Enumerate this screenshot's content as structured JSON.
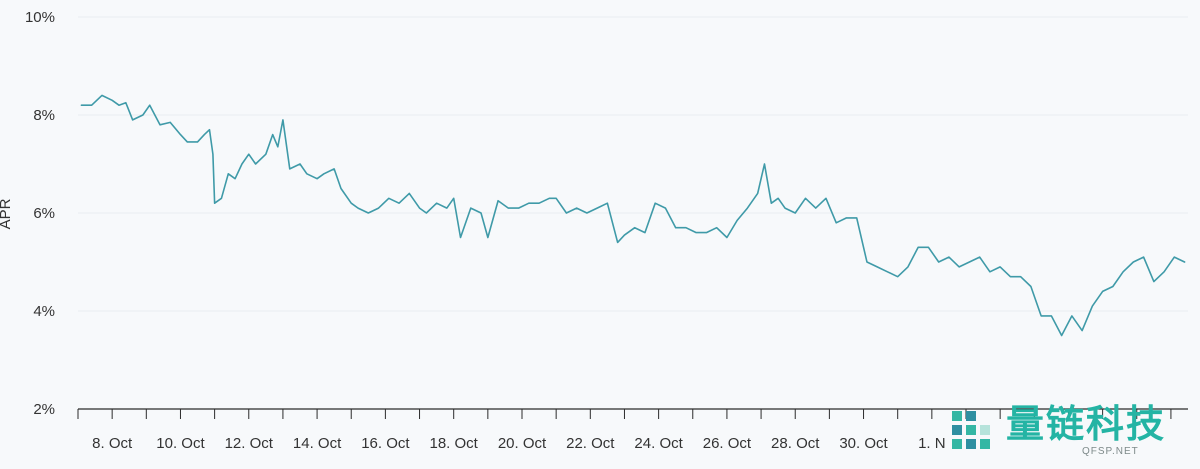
{
  "chart_data": {
    "type": "line",
    "title": "",
    "xlabel": "",
    "ylabel": "APR",
    "ylim": [
      2,
      10
    ],
    "yticks": [
      2,
      4,
      6,
      8,
      10
    ],
    "ytick_labels": [
      "2%",
      "4%",
      "6%",
      "8%",
      "10%"
    ],
    "xlim": [
      7.0,
      39.5
    ],
    "xticks": [
      8,
      10,
      12,
      14,
      16,
      18,
      20,
      22,
      24,
      26,
      28,
      30,
      32
    ],
    "xtick_labels": [
      "8. Oct",
      "10. Oct",
      "12. Oct",
      "14. Oct",
      "16. Oct",
      "18. Oct",
      "20. Oct",
      "22. Oct",
      "24. Oct",
      "26. Oct",
      "28. Oct",
      "30. Oct",
      "1. N"
    ],
    "series": [
      {
        "name": "APR",
        "color": "#3f9aa8",
        "x": [
          7.1,
          7.4,
          7.7,
          8.0,
          8.2,
          8.4,
          8.6,
          8.9,
          9.1,
          9.4,
          9.7,
          10.0,
          10.2,
          10.5,
          10.7,
          10.85,
          10.95,
          11.0,
          11.2,
          11.4,
          11.6,
          11.8,
          12.0,
          12.2,
          12.5,
          12.7,
          12.85,
          13.0,
          13.2,
          13.5,
          13.7,
          14.0,
          14.2,
          14.5,
          14.7,
          15.0,
          15.2,
          15.5,
          15.8,
          16.1,
          16.4,
          16.7,
          17.0,
          17.2,
          17.5,
          17.8,
          18.0,
          18.2,
          18.5,
          18.8,
          19.0,
          19.3,
          19.6,
          19.9,
          20.2,
          20.5,
          20.8,
          21.0,
          21.3,
          21.6,
          21.9,
          22.2,
          22.5,
          22.8,
          23.0,
          23.3,
          23.6,
          23.9,
          24.2,
          24.5,
          24.8,
          25.1,
          25.4,
          25.7,
          26.0,
          26.3,
          26.6,
          26.9,
          27.1,
          27.3,
          27.5,
          27.7,
          28.0,
          28.3,
          28.6,
          28.9,
          29.2,
          29.5,
          29.8,
          30.1,
          30.4,
          30.7,
          31.0,
          31.3,
          31.6,
          31.9,
          32.2,
          32.5,
          32.8,
          33.1,
          33.4,
          33.7,
          34.0,
          34.3,
          34.6,
          34.9,
          35.2,
          35.5,
          35.8,
          36.1,
          36.4,
          36.7,
          37.0,
          37.3,
          37.6,
          37.9,
          38.2,
          38.5,
          38.8,
          39.1,
          39.4
        ],
        "values": [
          8.2,
          8.2,
          8.4,
          8.3,
          8.2,
          8.25,
          7.9,
          8.0,
          8.2,
          7.8,
          7.85,
          7.6,
          7.45,
          7.45,
          7.6,
          7.7,
          7.2,
          6.2,
          6.3,
          6.8,
          6.7,
          7.0,
          7.2,
          7.0,
          7.2,
          7.6,
          7.35,
          7.9,
          6.9,
          7.0,
          6.8,
          6.7,
          6.8,
          6.9,
          6.5,
          6.2,
          6.1,
          6.0,
          6.1,
          6.3,
          6.2,
          6.4,
          6.1,
          6.0,
          6.2,
          6.1,
          6.3,
          5.5,
          6.1,
          6.0,
          5.5,
          6.25,
          6.1,
          6.1,
          6.2,
          6.2,
          6.3,
          6.3,
          6.0,
          6.1,
          6.0,
          6.1,
          6.2,
          5.4,
          5.55,
          5.7,
          5.6,
          6.2,
          6.1,
          5.7,
          5.7,
          5.6,
          5.6,
          5.7,
          5.5,
          5.85,
          6.1,
          6.4,
          7.0,
          6.2,
          6.3,
          6.1,
          6.0,
          6.3,
          6.1,
          6.3,
          5.8,
          5.9,
          5.9,
          5.0,
          4.9,
          4.8,
          4.7,
          4.9,
          5.3,
          5.3,
          5.0,
          5.1,
          4.9,
          5.0,
          5.1,
          4.8,
          4.9,
          4.7,
          4.7,
          4.5,
          3.9,
          3.9,
          3.5,
          3.9,
          3.6,
          4.1,
          4.4,
          4.5,
          4.8,
          5.0,
          5.1,
          4.6,
          4.8,
          5.1,
          5.0
        ]
      }
    ]
  },
  "watermark": {
    "title": "量链科技",
    "subtitle": "QFSP.NET"
  },
  "colors": {
    "background": "#f7f9fb",
    "grid": "#e8edf1",
    "axis": "#2b2b2b",
    "series": "#3f9aa8",
    "brand": "#24b4a4"
  }
}
